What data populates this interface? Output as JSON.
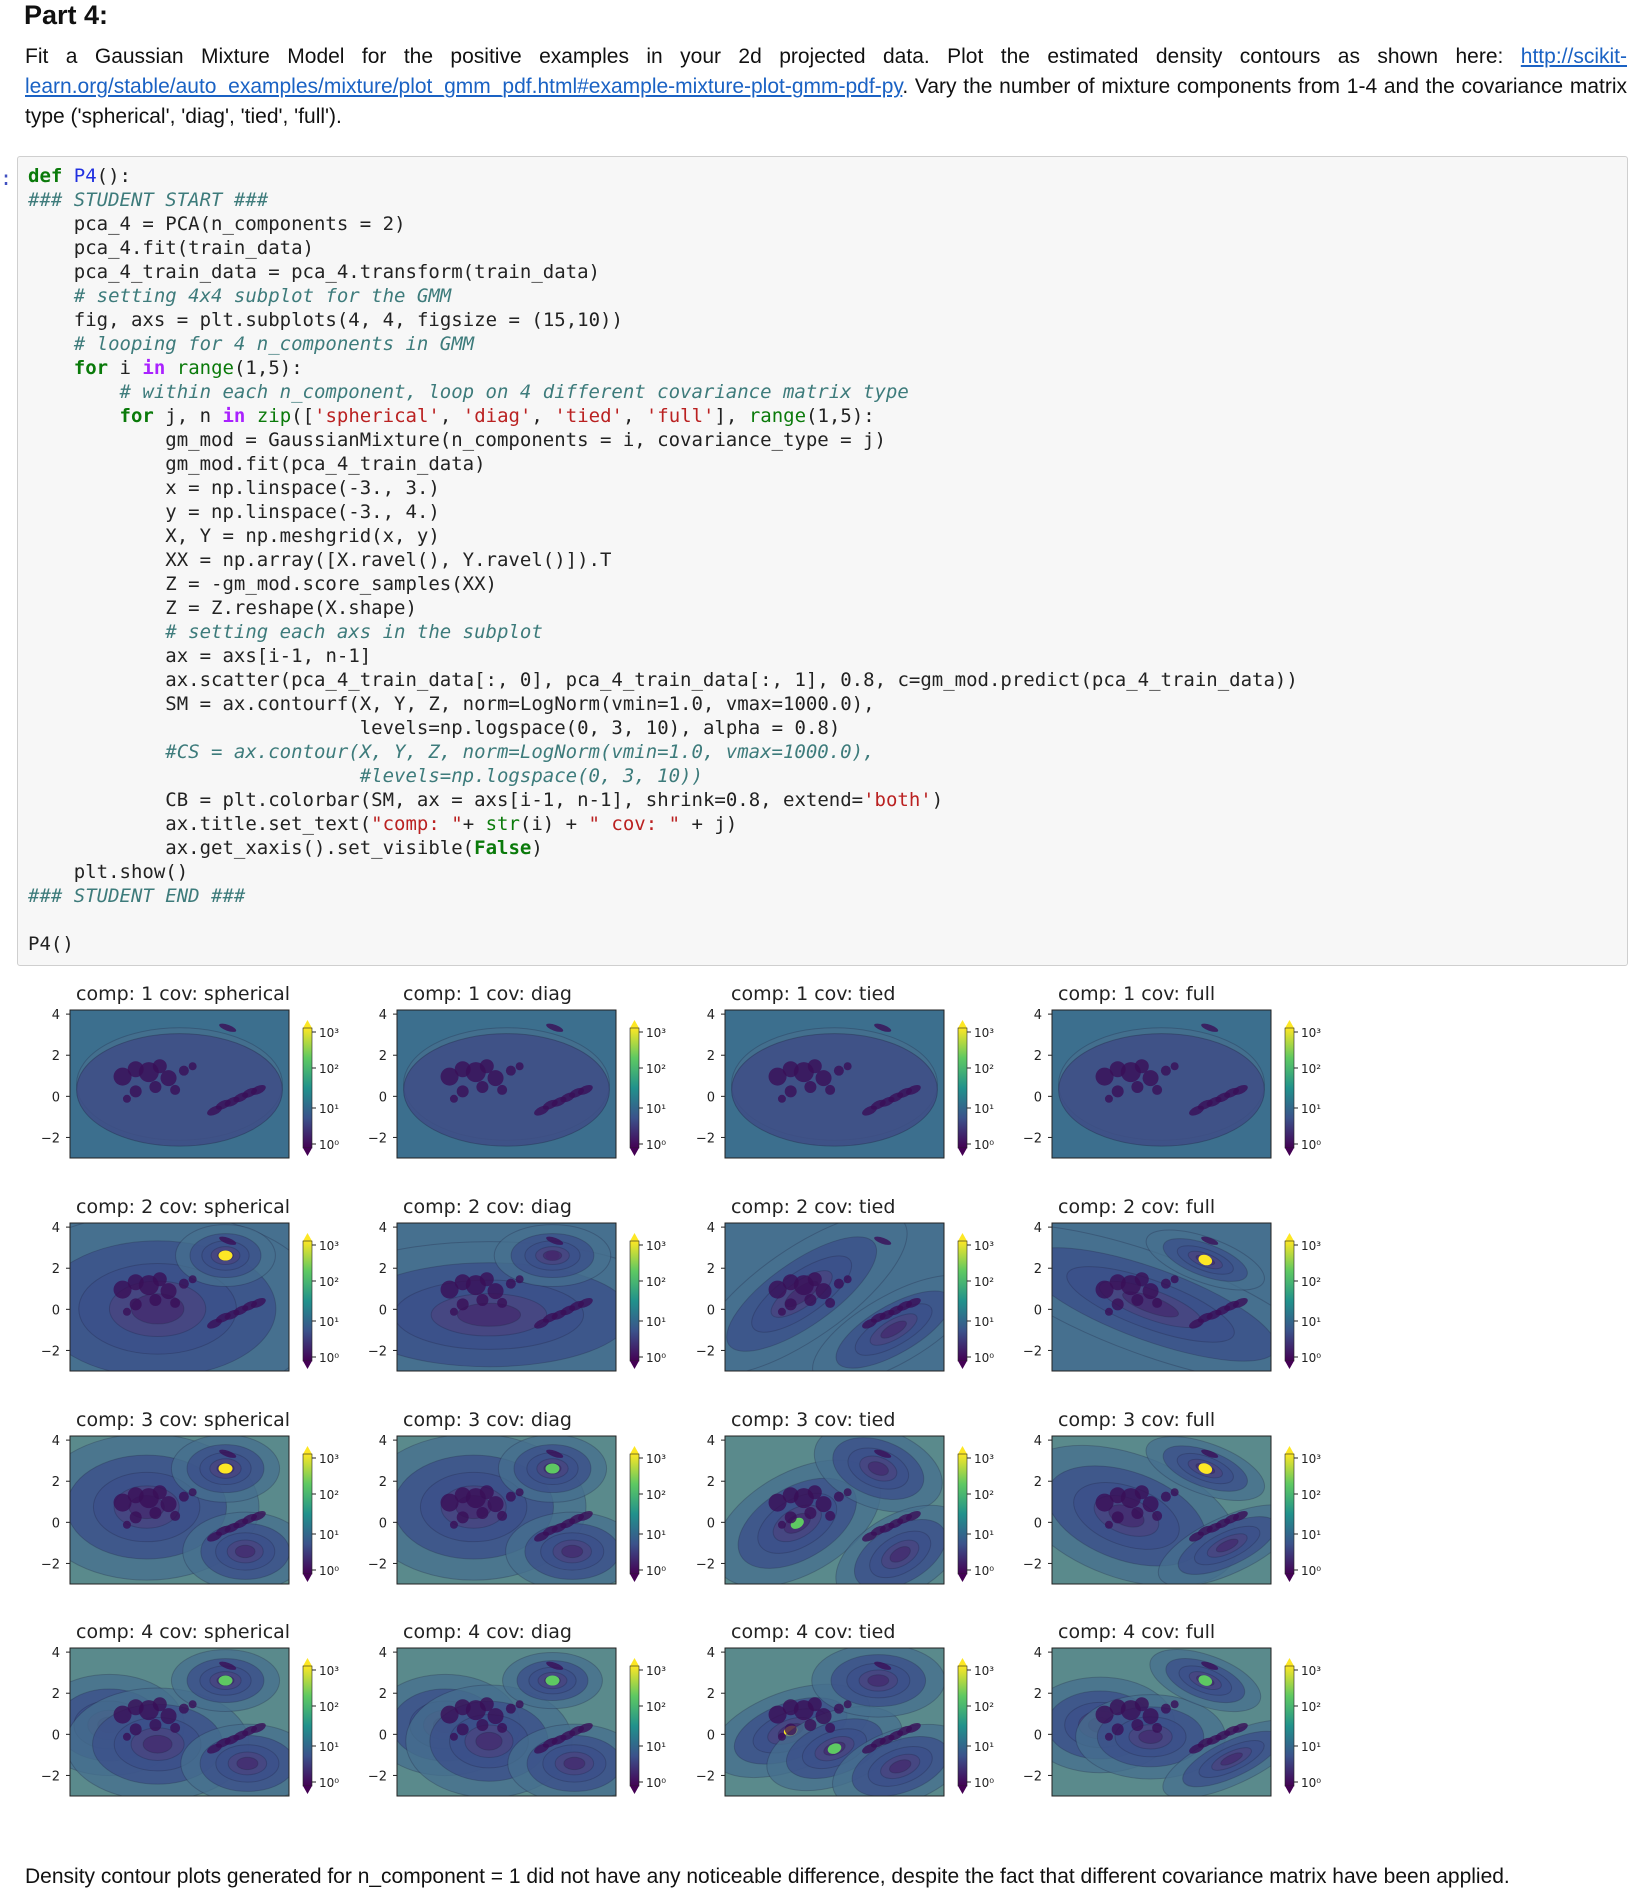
{
  "page": {
    "heading": "Part 4:",
    "intro_before_link": "Fit a Gaussian Mixture Model for the positive examples in your 2d projected data. Plot the estimated density contours as shown here: ",
    "link_text": "http://scikit-learn.org/stable/auto_examples/mixture/plot_gmm_pdf.html#example-mixture-plot-gmm-pdf-py",
    "intro_after_link": ". Vary the number of mixture components from 1-4 and the covariance matrix type ('spherical', 'diag', 'tied', 'full').",
    "prompt_marker": ":",
    "footer": "Density contour plots generated for n_component = 1 did not have any noticeable difference, despite the fact that different covariance matrix have been applied."
  },
  "code_lines": [
    [
      [
        "kw",
        "def"
      ],
      [
        "t",
        " "
      ],
      [
        "fn",
        "P4"
      ],
      [
        "t",
        "():"
      ]
    ],
    [
      [
        "com",
        "### STUDENT START ###"
      ]
    ],
    [
      [
        "t",
        "    pca_4 = PCA(n_components = "
      ],
      [
        "num",
        "2"
      ],
      [
        "t",
        ")"
      ]
    ],
    [
      [
        "t",
        "    pca_4.fit(train_data)"
      ]
    ],
    [
      [
        "t",
        "    pca_4_train_data = pca_4.transform(train_data)"
      ]
    ],
    [
      [
        "com",
        "    # setting 4x4 subplot for the GMM"
      ]
    ],
    [
      [
        "t",
        "    fig, axs = plt.subplots("
      ],
      [
        "num",
        "4"
      ],
      [
        "t",
        ", "
      ],
      [
        "num",
        "4"
      ],
      [
        "t",
        ", figsize = ("
      ],
      [
        "num",
        "15"
      ],
      [
        "t",
        ","
      ],
      [
        "num",
        "10"
      ],
      [
        "t",
        "))"
      ]
    ],
    [
      [
        "com",
        "    # looping for 4 n_components in GMM"
      ]
    ],
    [
      [
        "t",
        "    "
      ],
      [
        "kw",
        "for"
      ],
      [
        "t",
        " i "
      ],
      [
        "op",
        "in"
      ],
      [
        "t",
        " "
      ],
      [
        "bi",
        "range"
      ],
      [
        "t",
        "("
      ],
      [
        "num",
        "1"
      ],
      [
        "t",
        ","
      ],
      [
        "num",
        "5"
      ],
      [
        "t",
        "):"
      ]
    ],
    [
      [
        "com",
        "        # within each n_component, loop on 4 different covariance matrix type"
      ]
    ],
    [
      [
        "t",
        "        "
      ],
      [
        "kw",
        "for"
      ],
      [
        "t",
        " j, n "
      ],
      [
        "op",
        "in"
      ],
      [
        "t",
        " "
      ],
      [
        "bi",
        "zip"
      ],
      [
        "t",
        "(["
      ],
      [
        "str",
        "'spherical'"
      ],
      [
        "t",
        ", "
      ],
      [
        "str",
        "'diag'"
      ],
      [
        "t",
        ", "
      ],
      [
        "str",
        "'tied'"
      ],
      [
        "t",
        ", "
      ],
      [
        "str",
        "'full'"
      ],
      [
        "t",
        "], "
      ],
      [
        "bi",
        "range"
      ],
      [
        "t",
        "("
      ],
      [
        "num",
        "1"
      ],
      [
        "t",
        ","
      ],
      [
        "num",
        "5"
      ],
      [
        "t",
        "):"
      ]
    ],
    [
      [
        "t",
        "            gm_mod = GaussianMixture(n_components = i, covariance_type = j)"
      ]
    ],
    [
      [
        "t",
        "            gm_mod.fit(pca_4_train_data)"
      ]
    ],
    [
      [
        "t",
        "            x = np.linspace(-"
      ],
      [
        "num",
        "3."
      ],
      [
        "t",
        ", "
      ],
      [
        "num",
        "3."
      ],
      [
        "t",
        ")"
      ]
    ],
    [
      [
        "t",
        "            y = np.linspace(-"
      ],
      [
        "num",
        "3."
      ],
      [
        "t",
        ", "
      ],
      [
        "num",
        "4."
      ],
      [
        "t",
        ")"
      ]
    ],
    [
      [
        "t",
        "            X, Y = np.meshgrid(x, y)"
      ]
    ],
    [
      [
        "t",
        "            XX = np.array([X.ravel(), Y.ravel()]).T"
      ]
    ],
    [
      [
        "t",
        "            Z = -gm_mod.score_samples(XX)"
      ]
    ],
    [
      [
        "t",
        "            Z = Z.reshape(X.shape)"
      ]
    ],
    [
      [
        "com",
        "            # setting each axs in the subplot"
      ]
    ],
    [
      [
        "t",
        "            ax = axs[i-"
      ],
      [
        "num",
        "1"
      ],
      [
        "t",
        ", n-"
      ],
      [
        "num",
        "1"
      ],
      [
        "t",
        "]"
      ]
    ],
    [
      [
        "t",
        "            ax.scatter(pca_4_train_data[:, "
      ],
      [
        "num",
        "0"
      ],
      [
        "t",
        "], pca_4_train_data[:, "
      ],
      [
        "num",
        "1"
      ],
      [
        "t",
        "], "
      ],
      [
        "num",
        "0.8"
      ],
      [
        "t",
        ", c=gm_mod.predict(pca_4_train_data))"
      ]
    ],
    [
      [
        "t",
        "            SM = ax.contourf(X, Y, Z, norm=LogNorm(vmin="
      ],
      [
        "num",
        "1.0"
      ],
      [
        "t",
        ", vmax="
      ],
      [
        "num",
        "1000.0"
      ],
      [
        "t",
        "),"
      ]
    ],
    [
      [
        "t",
        "                             levels=np.logspace("
      ],
      [
        "num",
        "0"
      ],
      [
        "t",
        ", "
      ],
      [
        "num",
        "3"
      ],
      [
        "t",
        ", "
      ],
      [
        "num",
        "10"
      ],
      [
        "t",
        "), alpha = "
      ],
      [
        "num",
        "0.8"
      ],
      [
        "t",
        ")"
      ]
    ],
    [
      [
        "com",
        "            #CS = ax.contour(X, Y, Z, norm=LogNorm(vmin=1.0, vmax=1000.0),"
      ]
    ],
    [
      [
        "com",
        "                             #levels=np.logspace(0, 3, 10))"
      ]
    ],
    [
      [
        "t",
        "            CB = plt.colorbar(SM, ax = axs[i-"
      ],
      [
        "num",
        "1"
      ],
      [
        "t",
        ", n-"
      ],
      [
        "num",
        "1"
      ],
      [
        "t",
        "], shrink="
      ],
      [
        "num",
        "0.8"
      ],
      [
        "t",
        ", extend="
      ],
      [
        "str",
        "'both'"
      ],
      [
        "t",
        ")"
      ]
    ],
    [
      [
        "t",
        "            ax.title.set_text("
      ],
      [
        "str",
        "\"comp: \""
      ],
      [
        "t",
        "+ "
      ],
      [
        "bi",
        "str"
      ],
      [
        "t",
        "(i) + "
      ],
      [
        "str",
        "\" cov: \""
      ],
      [
        "t",
        " + j)"
      ]
    ],
    [
      [
        "t",
        "            ax.get_xaxis().set_visible("
      ],
      [
        "kw",
        "False"
      ],
      [
        "t",
        ")"
      ]
    ],
    [
      [
        "t",
        "    plt.show()"
      ]
    ],
    [
      [
        "com",
        "### STUDENT END ###"
      ]
    ],
    [
      [
        "t",
        ""
      ]
    ],
    [
      [
        "t",
        "P4()"
      ]
    ]
  ],
  "plot_grid": {
    "components": [
      1,
      2,
      3,
      4
    ],
    "covariance_types": [
      "spherical",
      "diag",
      "tied",
      "full"
    ],
    "title_template": "comp: {i} cov: {j}",
    "y_ticks": [
      "4",
      "2",
      "0",
      "−2"
    ],
    "colorbar_ticks": [
      "10³",
      "10²",
      "10¹",
      "10⁰"
    ],
    "colors": {
      "background": "#3c6f8e",
      "outer_level": "#5a8a8c",
      "mid_level": "#46708f",
      "inner_level": "#3b4f8a",
      "core_level": "#442a6e",
      "points": "#3a0f57",
      "peak_yellow": "#fde725",
      "peak_green": "#5ec962"
    }
  }
}
